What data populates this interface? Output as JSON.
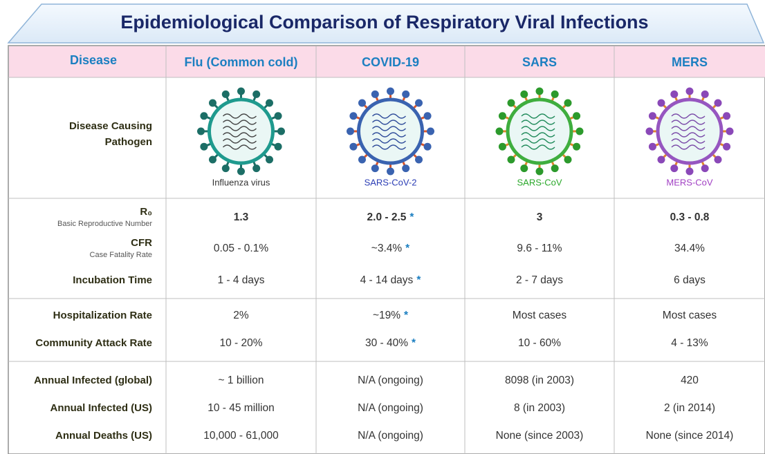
{
  "title": "Epidemiological Comparison of Respiratory Viral Infections",
  "header": [
    "Disease",
    "Flu (Common cold)",
    "COVID-19",
    "SARS",
    "MERS"
  ],
  "pathogen": {
    "label": [
      "Disease Causing",
      "Pathogen"
    ],
    "names": [
      "Influenza virus",
      "SARS-CoV-2",
      "SARS-CoV",
      "MERS-CoV"
    ]
  },
  "groups": [
    [
      {
        "label": "R₀",
        "sublabel": "Basic Reproductive Number",
        "cells": [
          "1.3",
          {
            "text": "2.0 - 2.5",
            "mark": "*"
          },
          "3",
          "0.3 - 0.8"
        ]
      },
      {
        "label": "CFR",
        "sublabel": "Case Fatality Rate",
        "cells": [
          "0.05 - 0.1%",
          {
            "text": "~3.4%",
            "mark": "*"
          },
          "9.6 - 11%",
          "34.4%"
        ]
      },
      {
        "label": "Incubation Time",
        "cells": [
          "1 - 4 days",
          {
            "text": "4 - 14 days",
            "mark": "*"
          },
          "2 - 7 days",
          "6 days"
        ]
      }
    ],
    [
      {
        "label": "Hospitalization Rate",
        "cells": [
          "2%",
          {
            "text": "~19%",
            "mark": "*"
          },
          "Most cases",
          "Most cases"
        ]
      },
      {
        "label": "Community Attack Rate",
        "cells": [
          "10 - 20%",
          {
            "text": "30 - 40%",
            "mark": "*"
          },
          "10 - 60%",
          "4 - 13%"
        ]
      }
    ],
    [
      {
        "label": "Annual Infected (global)",
        "cells": [
          "~ 1 billion",
          "N/A (ongoing)",
          "8098 (in 2003)",
          "420"
        ]
      },
      {
        "label": "Annual Infected (US)",
        "cells": [
          "10 - 45 million",
          "N/A (ongoing)",
          "8 (in 2003)",
          "2 (in 2014)"
        ]
      },
      {
        "label": "Annual Deaths (US)",
        "cells": [
          "10,000 - 61,000",
          "N/A (ongoing)",
          "None (since 2003)",
          "None (since 2014)"
        ]
      }
    ]
  ]
}
